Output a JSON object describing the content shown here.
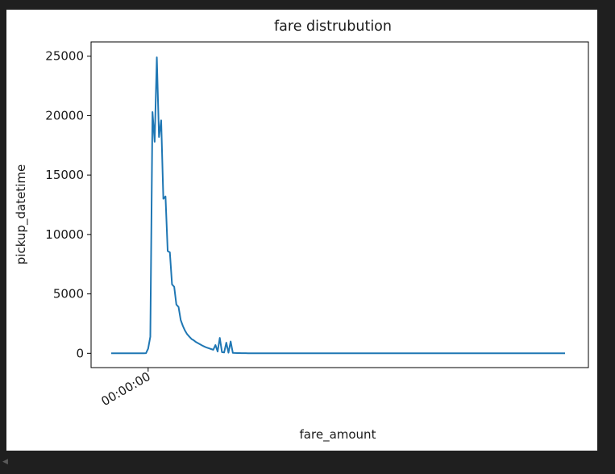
{
  "chart_data": {
    "type": "line",
    "title": "fare distrubution",
    "xlabel": "fare_amount",
    "ylabel": "pickup_datetime",
    "ylim": [
      -1200,
      26200
    ],
    "yticks": [
      0,
      5000,
      10000,
      15000,
      20000,
      25000
    ],
    "xtick_labels": [
      "00:00:00"
    ],
    "grid": false,
    "legend": "none",
    "color": "#1f77b4",
    "series": [
      {
        "values": [
          0,
          0,
          0,
          0,
          0,
          0,
          0,
          0,
          0,
          0,
          0,
          0,
          0,
          0,
          0,
          0,
          10,
          400,
          1400,
          20300,
          17800,
          24900,
          18200,
          19600,
          13000,
          13200,
          8600,
          8500,
          5800,
          5600,
          4100,
          3900,
          2800,
          2300,
          1900,
          1600,
          1400,
          1200,
          1100,
          950,
          850,
          750,
          650,
          560,
          480,
          420,
          360,
          300,
          700,
          150,
          1300,
          100,
          70,
          900,
          50,
          1000,
          40,
          30,
          25,
          20,
          15,
          12,
          10,
          8,
          6,
          5,
          4,
          3,
          2,
          2,
          1,
          1,
          1,
          1,
          1,
          0,
          0,
          0,
          0,
          0,
          0,
          0,
          0,
          0,
          0,
          0,
          0,
          0,
          0,
          0,
          0,
          0,
          0,
          0,
          0,
          0,
          0,
          0,
          0,
          0,
          0,
          0,
          0,
          0,
          0,
          0,
          0,
          0,
          0,
          0,
          0,
          0,
          0,
          0,
          0,
          0,
          0,
          0,
          0,
          0,
          0,
          0,
          0,
          0,
          0,
          0,
          0,
          0,
          0,
          0,
          0,
          0,
          0,
          0,
          0,
          0,
          0,
          0,
          0,
          0,
          0,
          0,
          0,
          0,
          0,
          0,
          0,
          0,
          0,
          0,
          0,
          0,
          0,
          0,
          0,
          0,
          0,
          0,
          0,
          0,
          0,
          0,
          0,
          0,
          0,
          0,
          0,
          0,
          0,
          0,
          0,
          0,
          0,
          0,
          0,
          0,
          0,
          0,
          0,
          0,
          0,
          0,
          0,
          0,
          0,
          0,
          0,
          0,
          0,
          0,
          0,
          0,
          0,
          0,
          0,
          0,
          0,
          0,
          0,
          0,
          0,
          0,
          0,
          0,
          0,
          0,
          0,
          0,
          0,
          0
        ]
      }
    ]
  }
}
